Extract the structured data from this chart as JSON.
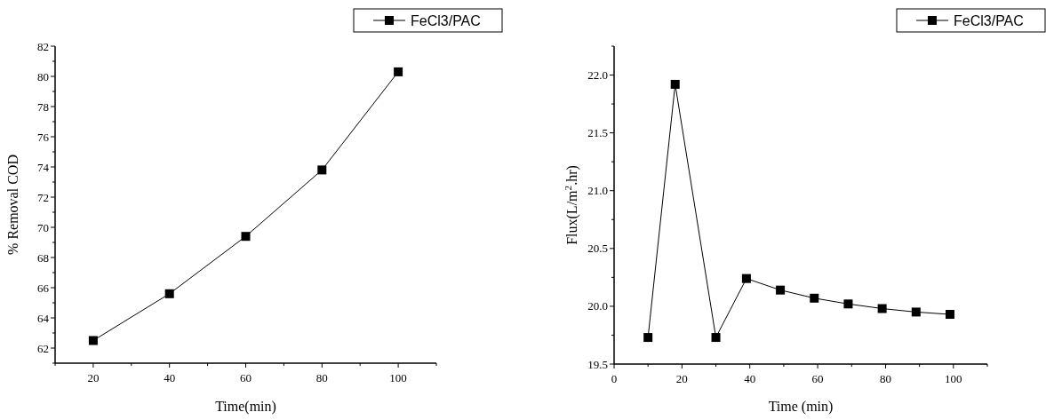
{
  "chart_data": [
    {
      "type": "line",
      "xlabel": "Time(min)",
      "ylabel": "% Removal COD",
      "x": [
        20,
        40,
        60,
        80,
        100
      ],
      "series": [
        {
          "name": "FeCl3/PAC",
          "color": "#000000",
          "values": [
            62.5,
            65.6,
            69.4,
            73.8,
            80.3
          ]
        }
      ],
      "xlim": [
        10,
        110
      ],
      "xticks": [
        {
          "value": 10,
          "label": null
        },
        20,
        {
          "value": 30,
          "label": null
        },
        40,
        {
          "value": 50,
          "label": null
        },
        60,
        {
          "value": 70,
          "label": null
        },
        80,
        {
          "value": 90,
          "label": null
        },
        100,
        {
          "value": 110,
          "label": null
        }
      ],
      "ylim": [
        61,
        82
      ],
      "yticks": [
        {
          "value": 61,
          "label": null
        },
        62,
        {
          "value": 63,
          "label": null
        },
        64,
        {
          "value": 65,
          "label": null
        },
        66,
        {
          "value": 67,
          "label": null
        },
        68,
        {
          "value": 69,
          "label": null
        },
        70,
        {
          "value": 71,
          "label": null
        },
        72,
        {
          "value": 73,
          "label": null
        },
        74,
        {
          "value": 75,
          "label": null
        },
        76,
        {
          "value": 77,
          "label": null
        },
        78,
        {
          "value": 79,
          "label": null
        },
        80,
        {
          "value": 81,
          "label": null
        },
        82
      ],
      "marker": "square",
      "legend": "top right",
      "grid": false
    },
    {
      "type": "line",
      "xlabel": "Time (min)",
      "ylabel": "Flux(L/m$^{2}$.hr)",
      "x": [
        10,
        18,
        30,
        39,
        49,
        59,
        69,
        79,
        89,
        99
      ],
      "series": [
        {
          "name": "FeCl3/PAC",
          "color": "#000000",
          "values": [
            19.73,
            21.92,
            19.73,
            20.24,
            20.14,
            20.07,
            20.02,
            19.98,
            19.95,
            19.93
          ]
        }
      ],
      "xlim": [
        0,
        110
      ],
      "xticks": [
        0,
        {
          "value": 10,
          "label": null
        },
        20,
        {
          "value": 30,
          "label": null
        },
        40,
        {
          "value": 50,
          "label": null
        },
        60,
        {
          "value": 70,
          "label": null
        },
        80,
        {
          "value": 90,
          "label": null
        },
        100,
        {
          "value": 110,
          "label": null
        }
      ],
      "ylim": [
        19.5,
        22.25
      ],
      "yticks": [
        {
          "value": 19.5,
          "label": "19.5"
        },
        {
          "value": 19.75,
          "label": null
        },
        {
          "value": 20,
          "label": "20.0"
        },
        {
          "value": 20.25,
          "label": null
        },
        {
          "value": 20.5,
          "label": "20.5"
        },
        {
          "value": 20.75,
          "label": null
        },
        {
          "value": 21,
          "label": "21.0"
        },
        {
          "value": 21.25,
          "label": null
        },
        {
          "value": 21.5,
          "label": "21.5"
        },
        {
          "value": 21.75,
          "label": null
        },
        {
          "value": 22,
          "label": "22.0"
        },
        {
          "value": 22.25,
          "label": null
        }
      ],
      "marker": "square",
      "legend": "top right",
      "grid": false
    }
  ]
}
